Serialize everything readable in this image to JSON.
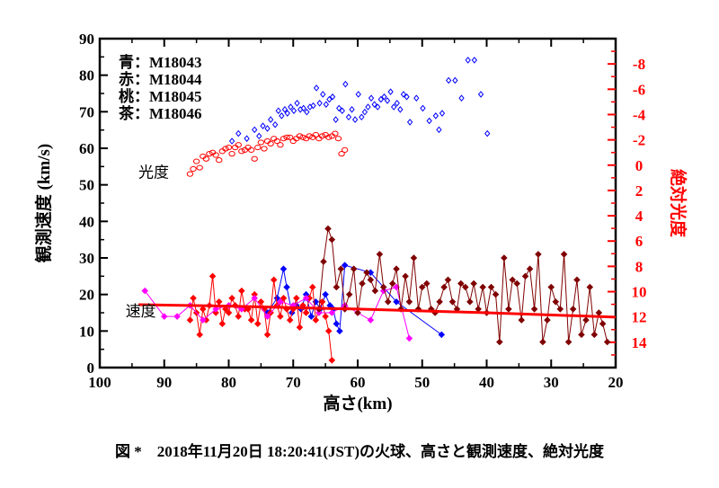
{
  "caption": "図 *　2018年11月20日 18:20:41(JST)の火球、高さと観測速度、絶対光度",
  "chart_data": {
    "type": "scatter",
    "xlabel": "高さ(km)",
    "ylabel": "観測速度 (km/s)",
    "y2label": "絶対光度",
    "xlim": [
      100,
      20
    ],
    "ylim": [
      0,
      90
    ],
    "y2lim": [
      16,
      -10
    ],
    "xticks": [
      "100",
      "90",
      "80",
      "70",
      "60",
      "50",
      "40",
      "30",
      "20"
    ],
    "yticks": [
      "0",
      "10",
      "20",
      "30",
      "40",
      "50",
      "60",
      "70",
      "80",
      "90"
    ],
    "y2ticks": [
      "-8",
      "-6",
      "-4",
      "-2",
      "0",
      "2",
      "4",
      "6",
      "8",
      "10",
      "12",
      "14"
    ],
    "legend": [
      {
        "label": "青：M18043",
        "color": "#0000ff"
      },
      {
        "label": "赤：M18044",
        "color": "#ff0000"
      },
      {
        "label": "桃：M18045",
        "color": "#ff00ff"
      },
      {
        "label": "茶：M18046",
        "color": "#800000"
      }
    ],
    "annotations": [
      {
        "text": "光度",
        "x": 94,
        "y": 52
      },
      {
        "text": "速度",
        "x": 96,
        "y": 14
      }
    ],
    "colors": {
      "blue": "#0000ff",
      "red": "#ff0000",
      "pink": "#ff00ff",
      "brown": "#800000",
      "axis2": "#ff0000"
    },
    "series": [
      {
        "name": "M18043 光度",
        "color": "#0000ff",
        "axis": "y2",
        "marker": "open-diamond",
        "x": [
          79.5,
          78.5,
          77.2,
          76,
          75.3,
          74.7,
          74,
          73.5,
          72.8,
          72.3,
          71.8,
          71.3,
          70.9,
          70.4,
          69.9,
          69.4,
          68.9,
          68.4,
          67.9,
          67.4,
          66.9,
          66.4,
          65.9,
          65.4,
          64.9,
          64.4,
          63.9,
          63.4,
          62.9,
          62.4,
          61.9,
          61.4,
          60.9,
          60.4,
          59.9,
          59.4,
          58.9,
          58.4,
          57.9,
          57.4,
          56.9,
          56.4,
          55.9,
          55.4,
          54.9,
          54.4,
          53.9,
          53.4,
          52.9,
          52.4,
          51.9,
          50.9,
          49.9,
          48.9,
          47.9,
          47.4,
          46.9,
          45.9,
          44.9,
          43.9,
          42.9,
          41.9,
          40.9,
          39.9
        ],
        "y": [
          -1.9,
          -2.5,
          -2.1,
          -2.8,
          -2.3,
          -3.1,
          -2.9,
          -3.6,
          -3.2,
          -4.3,
          -3.9,
          -4.4,
          -4.1,
          -4.6,
          -4.3,
          -4.9,
          -4.4,
          -4.5,
          -4.2,
          -4.6,
          -4.7,
          -6.1,
          -4.9,
          -5.6,
          -4.8,
          -5.2,
          -5.4,
          -3.6,
          -4.5,
          -4.3,
          -6.4,
          -3.8,
          -4.4,
          -3.6,
          -5.6,
          -3.8,
          -4.2,
          -4.6,
          -5.3,
          -4.8,
          -4.6,
          -5.2,
          -5.4,
          -5.1,
          -5.8,
          -4.6,
          -4.9,
          -4.4,
          -5.6,
          -5.4,
          -3.4,
          -5.3,
          -4.5,
          -3.5,
          -3.9,
          -2.8,
          -4.1,
          -6.7,
          -6.7,
          -5.3,
          -8.3,
          -8.3,
          -5.6,
          -2.5
        ]
      },
      {
        "name": "M18044 光度",
        "color": "#ff0000",
        "axis": "y2",
        "marker": "open-circle",
        "x": [
          86,
          85.5,
          85,
          84.5,
          84,
          83.5,
          83,
          82.5,
          82,
          81.5,
          81,
          80.5,
          80,
          79.5,
          79,
          78.5,
          78,
          77.5,
          77,
          76.5,
          76,
          75.5,
          75,
          74.5,
          74,
          73.5,
          73,
          72.5,
          72,
          71.5,
          71,
          70.5,
          70,
          69.5,
          69,
          68.5,
          68,
          67.5,
          67,
          66.5,
          66,
          65.5,
          65,
          64.5,
          64,
          63.5,
          63,
          62.5,
          62
        ],
        "y": [
          0.7,
          0.3,
          -0.3,
          0.2,
          -0.7,
          -0.5,
          -0.9,
          -1,
          -0.8,
          -0.4,
          -1.1,
          -1.3,
          -1.4,
          -0.9,
          -1.4,
          -1.6,
          -1.1,
          -1.2,
          -1.4,
          -1.2,
          -0.5,
          -1.4,
          -1.8,
          -1.3,
          -1.9,
          -1.7,
          -2.1,
          -1.9,
          -1.6,
          -2.1,
          -2.2,
          -2.2,
          -1.9,
          -2.1,
          -2.3,
          -2.2,
          -2.1,
          -2.3,
          -2.2,
          -2.4,
          -2.1,
          -2.3,
          -2.4,
          -2.2,
          -2.3,
          -2.5,
          -2.1,
          -0.9,
          -1.2
        ]
      },
      {
        "name": "M18043 速度",
        "color": "#0000ff",
        "axis": "y",
        "marker": "dot",
        "line": true,
        "x": [
          74,
          72.5,
          71.5,
          71,
          70.2,
          69.5,
          68.8,
          68,
          67.2,
          66.5,
          65.8,
          65,
          64.3,
          63.8,
          63.3,
          62.8,
          62,
          58,
          54,
          47
        ],
        "y": [
          15,
          19,
          27,
          22,
          15,
          17,
          16,
          20,
          14,
          18,
          16,
          20,
          17,
          16,
          12,
          10,
          28,
          26,
          18,
          9
        ]
      },
      {
        "name": "M18044 速度",
        "color": "#ff0000",
        "axis": "y",
        "marker": "dot",
        "line": true,
        "x": [
          86,
          85.5,
          85,
          84.5,
          84,
          83.5,
          83,
          82.5,
          82,
          81.5,
          81,
          80.5,
          80,
          79.5,
          79,
          78.5,
          78,
          77.5,
          77,
          76.5,
          76,
          75.5,
          75,
          74.5,
          74,
          73.5,
          73,
          72.5,
          72,
          71.5,
          71,
          70.5,
          70,
          69.5,
          69,
          68.5,
          68,
          67.5,
          67,
          66.5,
          66,
          65.5,
          65,
          64.5,
          64
        ],
        "y": [
          13,
          19,
          15,
          9,
          16,
          13,
          17,
          25,
          15,
          18,
          12,
          16,
          15,
          19,
          17,
          14,
          21,
          16,
          16,
          13,
          20,
          12,
          18,
          16,
          9,
          15,
          24,
          17,
          14,
          19,
          16,
          13,
          16,
          19,
          11,
          17,
          15,
          19,
          22,
          13,
          16,
          18,
          14,
          10,
          2
        ]
      },
      {
        "name": "M18045 速度",
        "color": "#ff00ff",
        "axis": "y",
        "marker": "dot",
        "line": true,
        "x": [
          93,
          90,
          88,
          86,
          84,
          82,
          80,
          78,
          76,
          74,
          72,
          70,
          68,
          66,
          64,
          62,
          60,
          58,
          56,
          54,
          52
        ],
        "y": [
          21,
          14,
          14,
          17,
          13,
          16,
          17,
          16,
          19,
          14,
          18,
          17,
          19,
          15,
          15,
          17,
          15,
          13,
          21,
          22,
          8
        ]
      },
      {
        "name": "M18046 速度",
        "color": "#800000",
        "axis": "y",
        "marker": "dot",
        "line": true,
        "x": [
          66,
          65.3,
          64.6,
          64,
          63.3,
          62.6,
          62,
          61.3,
          60.6,
          60,
          59.3,
          58.6,
          58,
          57.3,
          56.6,
          56,
          55.3,
          54.6,
          54,
          53.3,
          52.6,
          52,
          51.3,
          50.6,
          50,
          49.3,
          48.6,
          48,
          47.3,
          46.6,
          46,
          45.3,
          44.6,
          44,
          43.3,
          42.6,
          42,
          41.3,
          40.6,
          40,
          39.3,
          38.6,
          38,
          37.3,
          36.6,
          36,
          35.3,
          34.6,
          34,
          33.3,
          32.6,
          32,
          31.3,
          30.6,
          30,
          29.3,
          28.6,
          28,
          27.3,
          26.6,
          26,
          25.3,
          24.6,
          24,
          23.3,
          22.6,
          22,
          21.3
        ],
        "y": [
          16,
          29,
          38,
          35,
          22,
          27,
          16,
          20,
          27,
          15,
          23,
          26,
          24,
          21,
          31,
          22,
          18,
          23,
          27,
          16,
          25,
          18,
          30,
          16,
          22,
          23,
          16,
          15,
          18,
          22,
          24,
          18,
          16,
          23,
          22,
          18,
          23,
          16,
          22,
          15,
          22,
          20,
          7,
          30,
          16,
          24,
          23,
          13,
          25,
          27,
          16,
          31,
          7,
          13,
          22,
          18,
          16,
          31,
          7,
          16,
          24,
          9,
          13,
          22,
          9,
          15,
          12,
          7
        ]
      },
      {
        "name": "平均速度",
        "color": "#ff0000",
        "axis": "y",
        "marker": "none",
        "line": true,
        "width": 3,
        "x": [
          94,
          80,
          60,
          40,
          20
        ],
        "y": [
          17.2,
          16.8,
          16,
          15,
          13.8
        ]
      }
    ]
  }
}
